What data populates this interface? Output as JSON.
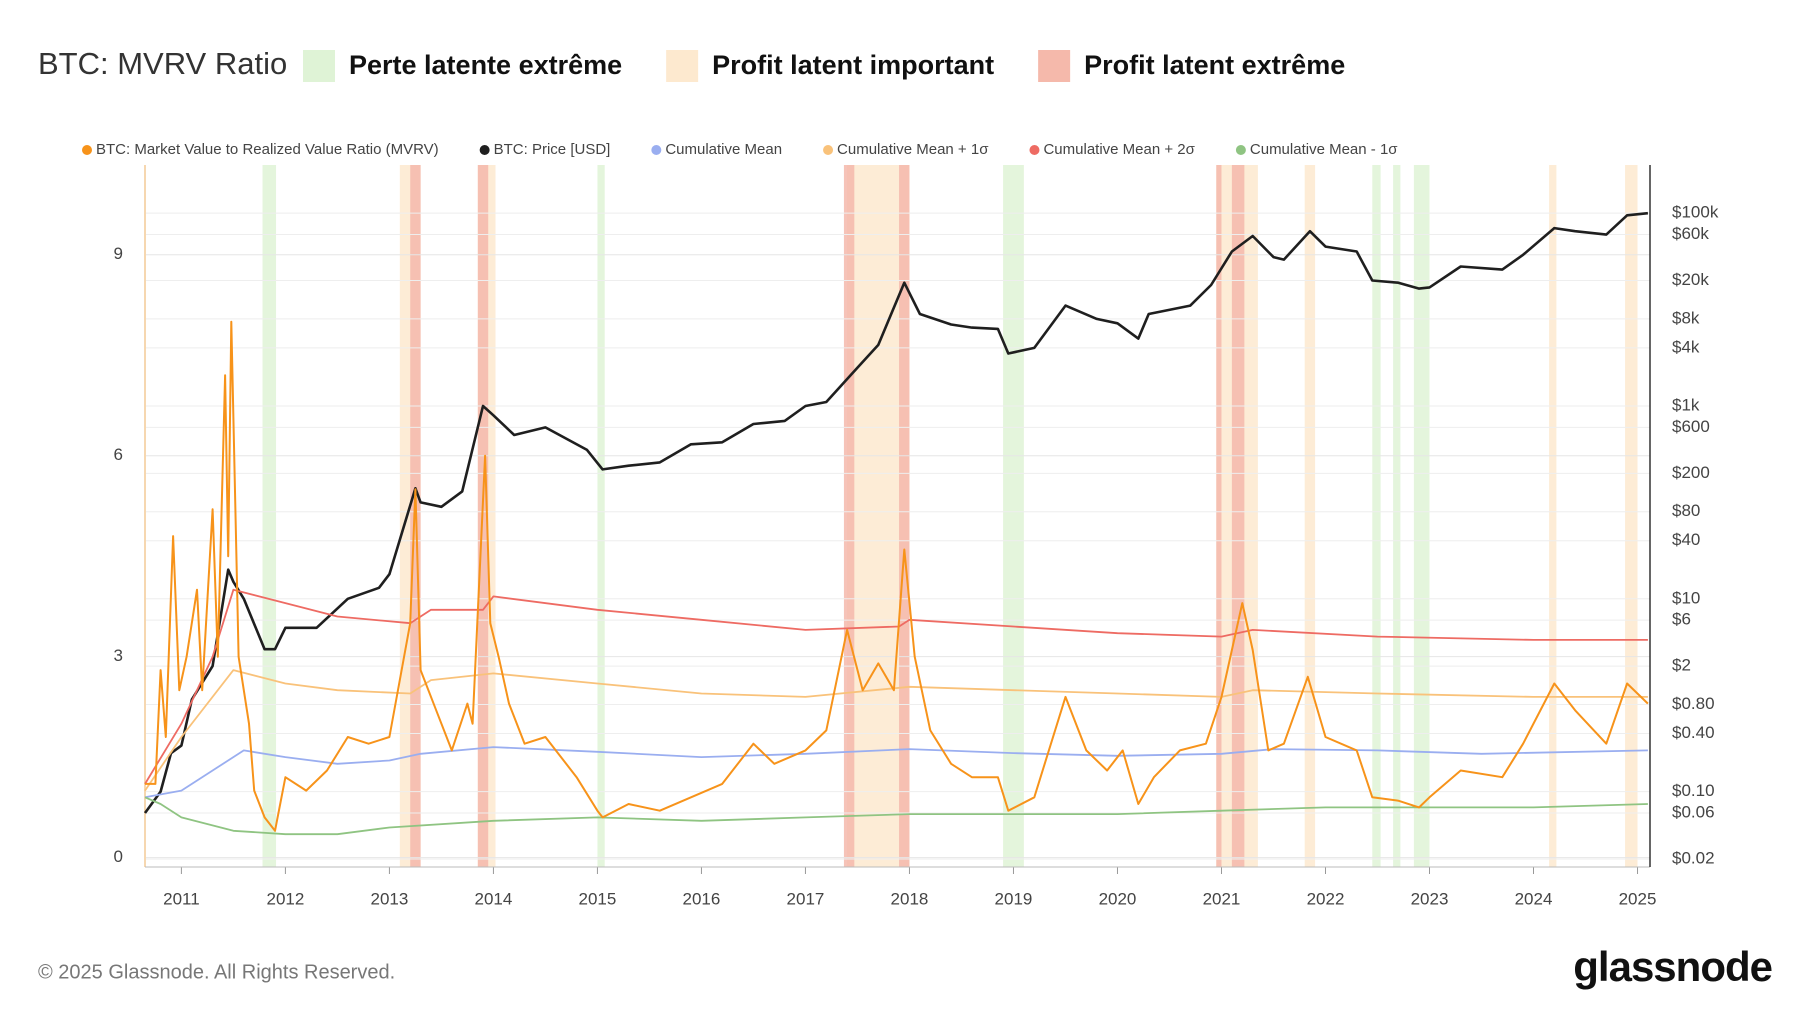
{
  "chart_data": {
    "type": "line",
    "title": "BTC: MVRV Ratio",
    "zones": [
      {
        "name": "Perte latente extrême",
        "color": "#dff3d6",
        "ranges": [
          [
            2011.78,
            2011.91
          ],
          [
            2015.0,
            2015.07
          ],
          [
            2018.9,
            2019.1
          ],
          [
            2022.45,
            2022.53
          ],
          [
            2022.65,
            2022.72
          ],
          [
            2022.85,
            2023.0
          ]
        ]
      },
      {
        "name": "Profit latent important",
        "color": "#fde9cf",
        "ranges": [
          [
            2013.1,
            2013.3
          ],
          [
            2013.85,
            2014.02
          ],
          [
            2017.4,
            2018.0
          ],
          [
            2020.95,
            2021.35
          ],
          [
            2021.8,
            2021.9
          ],
          [
            2024.15,
            2024.22
          ],
          [
            2024.88,
            2025.0
          ]
        ]
      },
      {
        "name": "Profit latent extrême",
        "color": "#f5b9ab",
        "ranges": [
          [
            2013.2,
            2013.3
          ],
          [
            2013.85,
            2013.95
          ],
          [
            2017.37,
            2017.47
          ],
          [
            2017.9,
            2018.0
          ],
          [
            2020.95,
            2021.0
          ],
          [
            2021.1,
            2021.22
          ]
        ]
      }
    ],
    "xlim": [
      2010.65,
      2025.12
    ],
    "xticks": [
      2011,
      2012,
      2013,
      2014,
      2015,
      2016,
      2017,
      2018,
      2019,
      2020,
      2021,
      2022,
      2023,
      2024,
      2025
    ],
    "ylim": [
      -0.14,
      10.34
    ],
    "yticks": [
      0,
      3,
      6,
      9
    ],
    "y2log": true,
    "y2lim": [
      0.0165,
      316000
    ],
    "y2ticks": [
      {
        "value": 100000,
        "label": "$100k"
      },
      {
        "value": 60000,
        "label": "$60k"
      },
      {
        "value": 20000,
        "label": "$20k"
      },
      {
        "value": 8000,
        "label": "$8k"
      },
      {
        "value": 4000,
        "label": "$4k"
      },
      {
        "value": 1000,
        "label": "$1k"
      },
      {
        "value": 600,
        "label": "$600"
      },
      {
        "value": 200,
        "label": "$200"
      },
      {
        "value": 80,
        "label": "$80"
      },
      {
        "value": 40,
        "label": "$40"
      },
      {
        "value": 10,
        "label": "$10"
      },
      {
        "value": 6,
        "label": "$6"
      },
      {
        "value": 2,
        "label": "$2"
      },
      {
        "value": 0.8,
        "label": "$0.80"
      },
      {
        "value": 0.4,
        "label": "$0.40"
      },
      {
        "value": 0.1,
        "label": "$0.10"
      },
      {
        "value": 0.06,
        "label": "$0.06"
      },
      {
        "value": 0.02,
        "label": "$0.02"
      }
    ],
    "grid": true,
    "series": [
      {
        "name": "BTC: Market Value to Realized Value Ratio (MVRV)",
        "color": "#f7931a",
        "x": [
          2010.65,
          2010.75,
          2010.8,
          2010.85,
          2010.92,
          2010.98,
          2011.05,
          2011.15,
          2011.2,
          2011.3,
          2011.35,
          2011.42,
          2011.45,
          2011.48,
          2011.55,
          2011.65,
          2011.7,
          2011.8,
          2011.9,
          2012.0,
          2012.2,
          2012.4,
          2012.6,
          2012.8,
          2013.0,
          2013.2,
          2013.25,
          2013.3,
          2013.45,
          2013.6,
          2013.75,
          2013.8,
          2013.92,
          2013.97,
          2014.05,
          2014.15,
          2014.3,
          2014.5,
          2014.8,
          2015.0,
          2015.05,
          2015.3,
          2015.6,
          2015.9,
          2016.2,
          2016.5,
          2016.7,
          2017.0,
          2017.2,
          2017.4,
          2017.55,
          2017.7,
          2017.85,
          2017.95,
          2018.05,
          2018.2,
          2018.4,
          2018.6,
          2018.85,
          2018.95,
          2019.2,
          2019.5,
          2019.7,
          2019.9,
          2020.05,
          2020.2,
          2020.35,
          2020.6,
          2020.85,
          2021.0,
          2021.2,
          2021.3,
          2021.45,
          2021.6,
          2021.83,
          2022.0,
          2022.3,
          2022.45,
          2022.7,
          2022.9,
          2023.0,
          2023.3,
          2023.7,
          2023.9,
          2024.2,
          2024.4,
          2024.7,
          2024.9,
          2025.1
        ],
        "values": [
          1.1,
          1.1,
          2.8,
          1.8,
          4.8,
          2.5,
          3.0,
          4.0,
          2.5,
          5.2,
          3.0,
          7.2,
          4.5,
          8.0,
          3.0,
          2.0,
          1.0,
          0.6,
          0.4,
          1.2,
          1.0,
          1.3,
          1.8,
          1.7,
          1.8,
          3.5,
          5.5,
          2.8,
          2.2,
          1.6,
          2.3,
          2.0,
          6.0,
          3.5,
          3.0,
          2.3,
          1.7,
          1.8,
          1.2,
          0.7,
          0.6,
          0.8,
          0.7,
          0.9,
          1.1,
          1.7,
          1.4,
          1.6,
          1.9,
          3.4,
          2.5,
          2.9,
          2.5,
          4.6,
          3.0,
          1.9,
          1.4,
          1.2,
          1.2,
          0.7,
          0.9,
          2.4,
          1.6,
          1.3,
          1.6,
          0.8,
          1.2,
          1.6,
          1.7,
          2.4,
          3.8,
          3.1,
          1.6,
          1.7,
          2.7,
          1.8,
          1.6,
          0.9,
          0.85,
          0.75,
          0.9,
          1.3,
          1.2,
          1.7,
          2.6,
          2.2,
          1.7,
          2.6,
          2.3
        ]
      },
      {
        "name": "BTC: Price [USD]",
        "color": "#1f1f1f",
        "axis": "y2",
        "x": [
          2010.65,
          2010.8,
          2010.9,
          2011.0,
          2011.1,
          2011.3,
          2011.45,
          2011.5,
          2011.6,
          2011.8,
          2011.9,
          2012.0,
          2012.3,
          2012.6,
          2012.9,
          2013.0,
          2013.25,
          2013.3,
          2013.5,
          2013.7,
          2013.9,
          2014.0,
          2014.2,
          2014.5,
          2014.9,
          2015.05,
          2015.3,
          2015.6,
          2015.9,
          2016.2,
          2016.5,
          2016.8,
          2017.0,
          2017.2,
          2017.5,
          2017.7,
          2017.95,
          2018.1,
          2018.4,
          2018.6,
          2018.85,
          2018.95,
          2019.2,
          2019.5,
          2019.8,
          2020.0,
          2020.2,
          2020.3,
          2020.7,
          2020.9,
          2021.1,
          2021.3,
          2021.5,
          2021.6,
          2021.85,
          2022.0,
          2022.3,
          2022.45,
          2022.7,
          2022.9,
          2023.0,
          2023.3,
          2023.7,
          2023.9,
          2024.2,
          2024.4,
          2024.7,
          2024.9,
          2025.1
        ],
        "values": [
          0.06,
          0.1,
          0.25,
          0.3,
          0.9,
          2,
          20,
          15,
          10,
          3,
          3,
          5,
          5,
          10,
          13,
          18,
          140,
          100,
          90,
          130,
          1000,
          800,
          500,
          600,
          350,
          220,
          240,
          260,
          400,
          420,
          650,
          700,
          1000,
          1100,
          2500,
          4300,
          19000,
          9000,
          7000,
          6500,
          6300,
          3500,
          4000,
          11000,
          8000,
          7200,
          5000,
          9000,
          11000,
          18000,
          40000,
          58000,
          35000,
          33000,
          65000,
          45000,
          40000,
          20000,
          19000,
          16500,
          17000,
          28000,
          26000,
          37000,
          70000,
          65000,
          60000,
          95000,
          100000
        ]
      },
      {
        "name": "Cumulative Mean",
        "color": "#9aaef0",
        "x": [
          2010.65,
          2011.0,
          2011.3,
          2011.6,
          2012.0,
          2012.5,
          2013.0,
          2013.3,
          2014.0,
          2015.0,
          2016.0,
          2017.0,
          2018.0,
          2019.0,
          2020.0,
          2021.0,
          2021.5,
          2022.5,
          2023.5,
          2025.1
        ],
        "values": [
          0.9,
          1.0,
          1.3,
          1.6,
          1.5,
          1.4,
          1.45,
          1.55,
          1.65,
          1.58,
          1.5,
          1.55,
          1.62,
          1.56,
          1.52,
          1.55,
          1.62,
          1.6,
          1.55,
          1.6
        ]
      },
      {
        "name": "Cumulative Mean + 1σ",
        "color": "#f9c27a",
        "x": [
          2010.65,
          2011.0,
          2011.5,
          2012.0,
          2012.5,
          2013.2,
          2013.4,
          2014.0,
          2015.0,
          2016.0,
          2017.0,
          2018.0,
          2019.0,
          2020.0,
          2021.0,
          2021.3,
          2022.5,
          2024.0,
          2025.1
        ],
        "values": [
          1.0,
          1.8,
          2.8,
          2.6,
          2.5,
          2.45,
          2.65,
          2.75,
          2.6,
          2.45,
          2.4,
          2.55,
          2.5,
          2.45,
          2.4,
          2.5,
          2.45,
          2.4,
          2.4
        ]
      },
      {
        "name": "Cumulative Mean + 2σ",
        "color": "#ee6b63",
        "x": [
          2010.65,
          2011.0,
          2011.3,
          2011.5,
          2012.0,
          2012.5,
          2013.2,
          2013.4,
          2013.9,
          2014.0,
          2015.0,
          2016.0,
          2017.0,
          2017.9,
          2018.0,
          2019.0,
          2020.0,
          2021.0,
          2021.3,
          2022.5,
          2024.0,
          2025.1
        ],
        "values": [
          1.1,
          2.0,
          3.0,
          4.0,
          3.8,
          3.6,
          3.5,
          3.7,
          3.7,
          3.9,
          3.7,
          3.55,
          3.4,
          3.45,
          3.55,
          3.45,
          3.35,
          3.3,
          3.4,
          3.3,
          3.25,
          3.25
        ]
      },
      {
        "name": "Cumulative Mean - 1σ",
        "color": "#8fc482",
        "x": [
          2010.65,
          2010.8,
          2011.0,
          2011.5,
          2012.0,
          2012.5,
          2013.0,
          2014.0,
          2015.0,
          2016.0,
          2017.0,
          2018.0,
          2019.0,
          2020.0,
          2021.0,
          2022.0,
          2023.0,
          2024.0,
          2025.1
        ],
        "values": [
          0.9,
          0.8,
          0.6,
          0.4,
          0.35,
          0.35,
          0.45,
          0.55,
          0.6,
          0.55,
          0.6,
          0.65,
          0.65,
          0.65,
          0.7,
          0.75,
          0.75,
          0.75,
          0.8
        ]
      }
    ]
  },
  "footer": "© 2025 Glassnode. All Rights Reserved.",
  "brand": "glassnode"
}
